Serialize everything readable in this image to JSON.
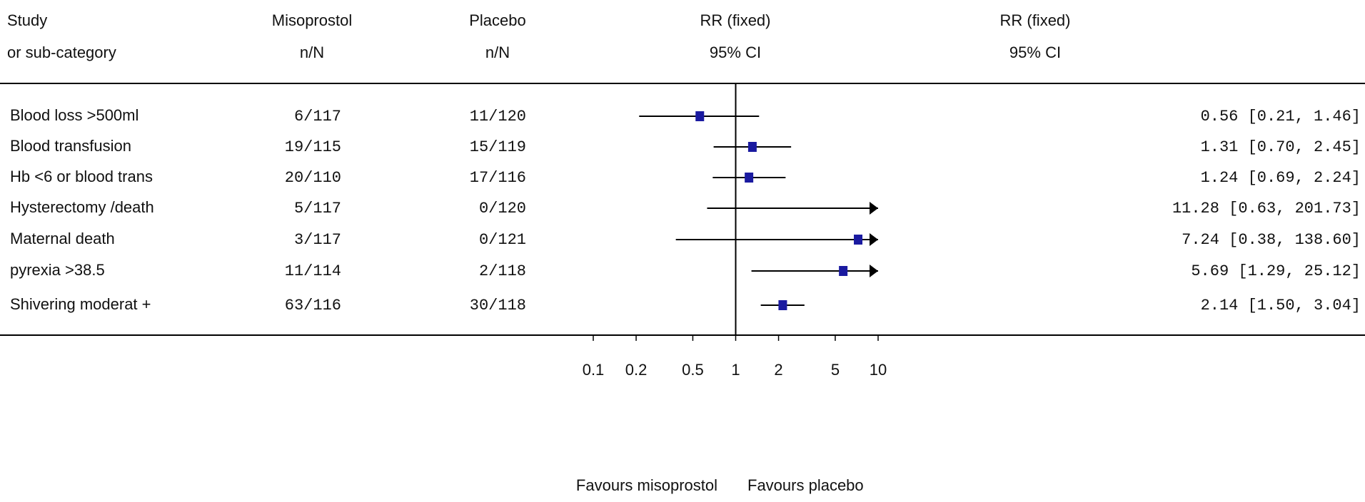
{
  "chart_data": {
    "type": "forest",
    "headers": [
      [
        "Study",
        "or sub-category"
      ],
      [
        "Misoprostol",
        "n/N"
      ],
      [
        "Placebo",
        "n/N"
      ],
      [
        "RR (fixed)",
        "95% CI"
      ],
      [
        "RR (fixed)",
        "95% CI"
      ]
    ],
    "categories": [
      "Blood loss >500ml",
      "Blood transfusion",
      "Hb <6 or blood trans",
      "Hysterectomy /death",
      "Maternal death",
      "pyrexia >38.5",
      "Shivering moderat +"
    ],
    "treatment": [
      "6/117",
      "19/115",
      "20/110",
      "5/117",
      "3/117",
      "11/114",
      "63/116"
    ],
    "control": [
      "11/120",
      "15/119",
      "17/116",
      "0/120",
      "0/121",
      "2/118",
      "30/118"
    ],
    "values": [
      0.56,
      1.31,
      1.24,
      11.28,
      7.24,
      5.69,
      2.14
    ],
    "lower": [
      0.21,
      0.7,
      0.69,
      0.63,
      0.38,
      1.29,
      1.5
    ],
    "upper": [
      1.46,
      2.45,
      2.24,
      201.73,
      138.6,
      25.12,
      3.04
    ],
    "value_labels": [
      "0.56 [0.21, 1.46]",
      "1.31 [0.70, 2.45]",
      "1.24 [0.69, 2.24]",
      "11.28 [0.63, 201.73]",
      "7.24 [0.38, 138.60]",
      "5.69 [1.29, 25.12]",
      "2.14 [1.50, 3.04]"
    ],
    "xlim": [
      0.1,
      10
    ],
    "xticks": [
      0.1,
      0.2,
      0.5,
      1,
      2,
      5,
      10
    ],
    "log_x": true,
    "reference": 1,
    "color": "#1a1aa0",
    "footer": [
      "Favours misoprostol",
      "Favours placebo"
    ]
  }
}
